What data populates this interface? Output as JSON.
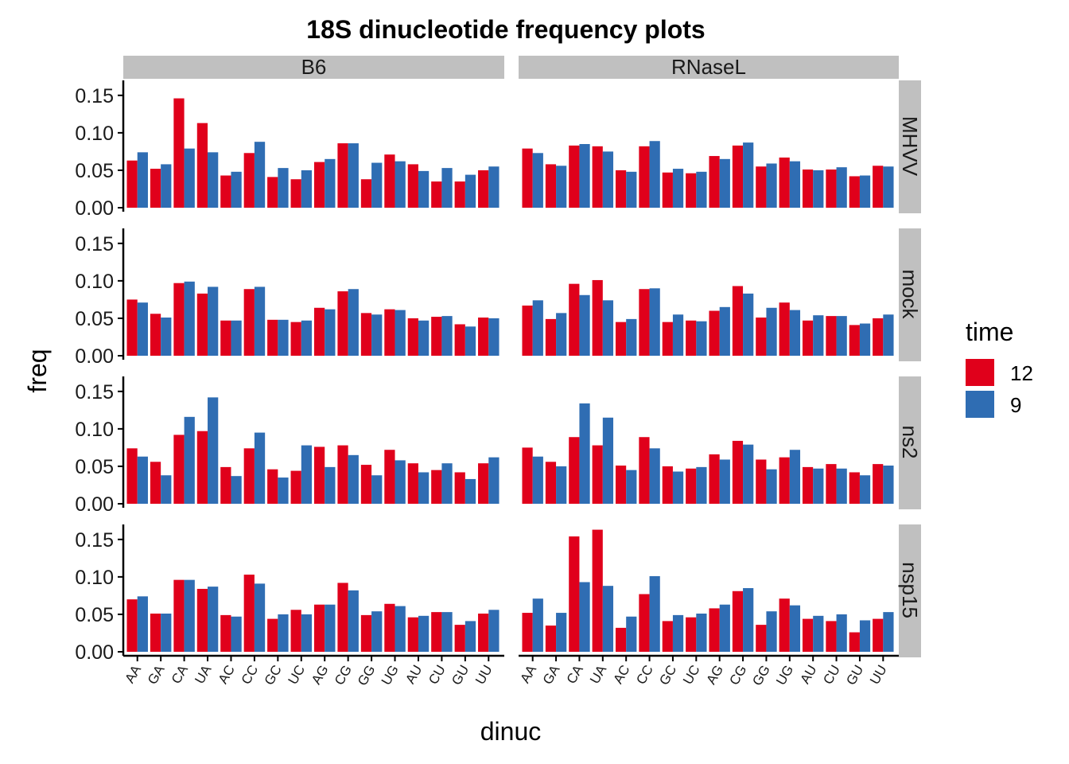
{
  "chart_data": {
    "type": "bar",
    "title": "18S dinucleotide frequency plots",
    "xlabel": "dinuc",
    "ylabel": "freq",
    "ylim": [
      0,
      0.17
    ],
    "yticks": [
      "0.00",
      "0.05",
      "0.10",
      "0.15"
    ],
    "ytick_values": [
      0,
      0.05,
      0.1,
      0.15
    ],
    "categories": [
      "AA",
      "GA",
      "CA",
      "UA",
      "AC",
      "CC",
      "GC",
      "UC",
      "AG",
      "CG",
      "GG",
      "UG",
      "AU",
      "CU",
      "GU",
      "UU"
    ],
    "facet_columns": [
      "B6",
      "RNaseL"
    ],
    "facet_rows": [
      "MHVV",
      "mock",
      "ns2",
      "nsp15"
    ],
    "grid": false,
    "legend": {
      "title": "time",
      "position": "right",
      "entries": [
        {
          "label": "12",
          "color": "#e0001b"
        },
        {
          "label": "9",
          "color": "#2f6db3"
        }
      ]
    },
    "series": [
      {
        "name": "12",
        "color": "#e0001b",
        "values": {
          "B6": {
            "MHVV": [
              0.063,
              0.052,
              0.146,
              0.113,
              0.043,
              0.073,
              0.041,
              0.038,
              0.061,
              0.086,
              0.038,
              0.071,
              0.058,
              0.035,
              0.035,
              0.05
            ],
            "mock": [
              0.075,
              0.056,
              0.097,
              0.083,
              0.047,
              0.089,
              0.048,
              0.045,
              0.064,
              0.086,
              0.057,
              0.062,
              0.05,
              0.052,
              0.042,
              0.051
            ],
            "ns2": [
              0.074,
              0.056,
              0.092,
              0.097,
              0.049,
              0.074,
              0.046,
              0.044,
              0.076,
              0.078,
              0.052,
              0.072,
              0.054,
              0.045,
              0.042,
              0.054
            ],
            "nsp15": [
              0.07,
              0.051,
              0.096,
              0.084,
              0.049,
              0.103,
              0.044,
              0.056,
              0.063,
              0.092,
              0.049,
              0.064,
              0.046,
              0.053,
              0.036,
              0.051
            ]
          },
          "RNaseL": {
            "MHVV": [
              0.079,
              0.058,
              0.083,
              0.082,
              0.05,
              0.082,
              0.047,
              0.046,
              0.069,
              0.083,
              0.055,
              0.067,
              0.051,
              0.051,
              0.042,
              0.056
            ],
            "mock": [
              0.067,
              0.049,
              0.096,
              0.101,
              0.045,
              0.089,
              0.045,
              0.047,
              0.06,
              0.093,
              0.051,
              0.071,
              0.047,
              0.053,
              0.041,
              0.05
            ],
            "ns2": [
              0.075,
              0.056,
              0.089,
              0.078,
              0.051,
              0.089,
              0.05,
              0.047,
              0.066,
              0.084,
              0.059,
              0.062,
              0.049,
              0.053,
              0.042,
              0.053
            ],
            "nsp15": [
              0.052,
              0.035,
              0.154,
              0.163,
              0.032,
              0.077,
              0.041,
              0.046,
              0.058,
              0.081,
              0.036,
              0.071,
              0.044,
              0.041,
              0.026,
              0.044
            ]
          }
        }
      },
      {
        "name": "9",
        "color": "#2f6db3",
        "values": {
          "B6": {
            "MHVV": [
              0.074,
              0.058,
              0.079,
              0.074,
              0.048,
              0.088,
              0.053,
              0.05,
              0.065,
              0.086,
              0.06,
              0.062,
              0.049,
              0.053,
              0.044,
              0.055
            ],
            "mock": [
              0.071,
              0.051,
              0.099,
              0.092,
              0.047,
              0.092,
              0.048,
              0.047,
              0.062,
              0.089,
              0.055,
              0.061,
              0.047,
              0.053,
              0.039,
              0.05
            ],
            "ns2": [
              0.063,
              0.038,
              0.116,
              0.142,
              0.037,
              0.095,
              0.035,
              0.078,
              0.049,
              0.065,
              0.038,
              0.058,
              0.042,
              0.054,
              0.033,
              0.062
            ],
            "nsp15": [
              0.074,
              0.051,
              0.096,
              0.087,
              0.047,
              0.091,
              0.05,
              0.05,
              0.063,
              0.082,
              0.054,
              0.061,
              0.048,
              0.053,
              0.041,
              0.056
            ]
          },
          "RNaseL": {
            "MHVV": [
              0.073,
              0.056,
              0.085,
              0.075,
              0.048,
              0.089,
              0.052,
              0.048,
              0.065,
              0.087,
              0.059,
              0.062,
              0.05,
              0.054,
              0.043,
              0.055
            ],
            "mock": [
              0.074,
              0.057,
              0.081,
              0.074,
              0.049,
              0.09,
              0.055,
              0.046,
              0.065,
              0.083,
              0.064,
              0.061,
              0.054,
              0.053,
              0.043,
              0.055
            ],
            "ns2": [
              0.063,
              0.05,
              0.134,
              0.115,
              0.045,
              0.074,
              0.043,
              0.049,
              0.059,
              0.079,
              0.046,
              0.072,
              0.047,
              0.047,
              0.038,
              0.051
            ],
            "nsp15": [
              0.071,
              0.052,
              0.093,
              0.088,
              0.047,
              0.101,
              0.049,
              0.051,
              0.063,
              0.085,
              0.054,
              0.062,
              0.048,
              0.05,
              0.042,
              0.053
            ]
          }
        }
      }
    ]
  }
}
